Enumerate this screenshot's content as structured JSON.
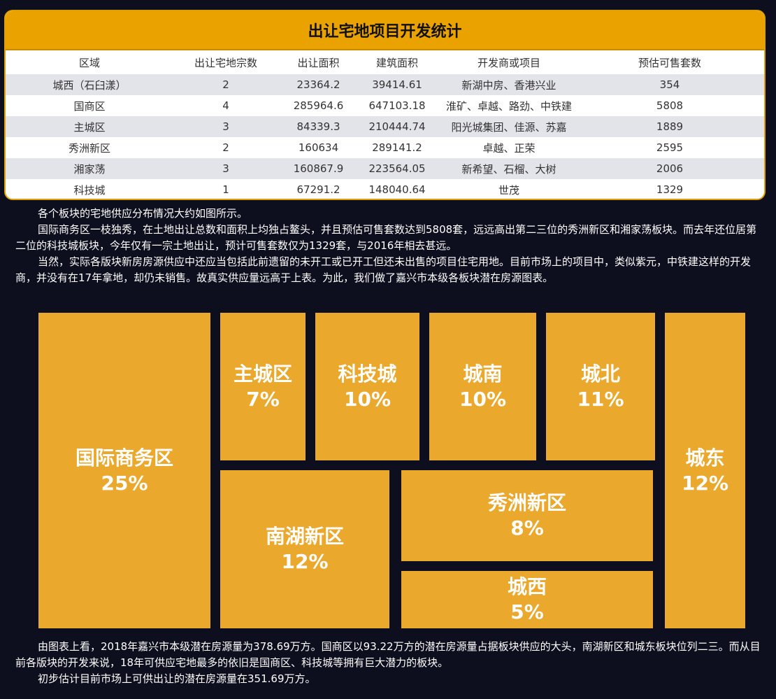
{
  "table": {
    "title": "出让宅地项目开发统计",
    "headers": [
      "区域",
      "出让宅地宗数",
      "出让面积",
      "建筑面积",
      "开发商或项目",
      "预估可售套数"
    ],
    "rows": [
      [
        "城西（石臼漾）",
        "2",
        "23364.2",
        "39414.61",
        "新湖中房、香港兴业",
        "354"
      ],
      [
        "国商区",
        "4",
        "285964.6",
        "647103.18",
        "淮矿、卓越、路劲、中铁建",
        "5808"
      ],
      [
        "主城区",
        "3",
        "84339.3",
        "210444.74",
        "阳光城集团、佳源、苏嘉",
        "1889"
      ],
      [
        "秀洲新区",
        "2",
        "160634",
        "289141.2",
        "卓越、正荣",
        "2595"
      ],
      [
        "湘家荡",
        "3",
        "160867.9",
        "223564.05",
        "新希望、石榴、大树",
        "2006"
      ],
      [
        "科技城",
        "1",
        "67291.2",
        "148040.64",
        "世茂",
        "1329"
      ]
    ]
  },
  "text_top": {
    "p1": "各个板块的宅地供应分布情况大约如图所示。",
    "p2": "国际商务区一枝独秀，在土地出让总数和面积上均独占鳌头，并且预估可售套数达到5808套，远远高出第二三位的秀洲新区和湘家荡板块。而去年还位居第二位的科技城板块，今年仅有一宗土地出让，预计可售套数仅为1329套，与2016年相去甚远。",
    "p3": "当然，实际各版块新房房源供应中还应当包括此前遗留的未开工或已开工但还未出售的项目住宅用地。目前市场上的项目中，类似紫元，中铁建这样的开发商，并没有在17年拿地，却仍未销售。故真实供应量远高于上表。为此，我们做了嘉兴市本级各板块潜在房源图表。"
  },
  "treemap": {
    "tiles": [
      {
        "name": "国际商务区",
        "pct": "25%"
      },
      {
        "name": "主城区",
        "pct": "7%"
      },
      {
        "name": "科技城",
        "pct": "10%"
      },
      {
        "name": "城南",
        "pct": "10%"
      },
      {
        "name": "城北",
        "pct": "11%"
      },
      {
        "name": "城东",
        "pct": "12%"
      },
      {
        "name": "南湖新区",
        "pct": "12%"
      },
      {
        "name": "秀洲新区",
        "pct": "8%"
      },
      {
        "name": "城西",
        "pct": "5%"
      }
    ],
    "tile_color": "#eaa82c"
  },
  "text_bottom": {
    "p1": "由图表上看，2018年嘉兴市本级潜在房源量为378.69万方。国商区以93.22万方的潜在房源量占据板块供应的大头，南湖新区和城东板块位列二三。而从目前各版块的开发来说，18年可供应宅地最多的依旧是国商区、科技城等拥有巨大潜力的板块。",
    "p2": "初步估计目前市场上可供出让的潜在房源量在351.69万方。"
  },
  "colors": {
    "background": "#0d0e1e",
    "accent": "#eaa200",
    "row_shade": "#e3e3ea"
  }
}
